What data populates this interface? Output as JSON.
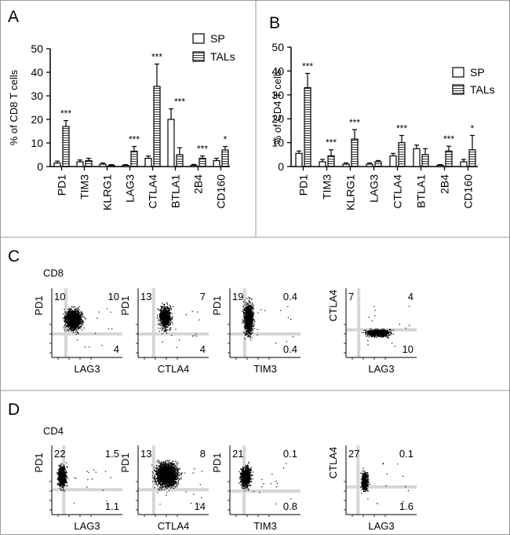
{
  "panel_labels": {
    "a": "A",
    "b": "B",
    "c": "C",
    "d": "D"
  },
  "legend": {
    "sp": "SP",
    "tals": "TALs"
  },
  "chart_data": [
    {
      "type": "bar",
      "panel": "A",
      "ylabel": "% of CD8 T cells",
      "ylim": [
        0,
        50
      ],
      "yticks": [
        0,
        10,
        20,
        30,
        40,
        50
      ],
      "categories": [
        "PD1",
        "TIM3",
        "KLRG1",
        "LAG3",
        "CTLA4",
        "BTLA1",
        "2B4",
        "CD160"
      ],
      "series": [
        {
          "name": "SP",
          "values": [
            1.5,
            2,
            1,
            0.5,
            3.5,
            20,
            0.5,
            2.5
          ],
          "errors": [
            0.8,
            0.8,
            0.5,
            0.3,
            1.0,
            4.5,
            0.4,
            1.0
          ]
        },
        {
          "name": "TALs",
          "values": [
            17,
            2.5,
            0.5,
            6.5,
            34,
            5,
            3.5,
            7
          ],
          "errors": [
            2.5,
            1.0,
            0.3,
            2.0,
            9.5,
            3.0,
            1.0,
            1.5
          ]
        }
      ],
      "significance": [
        "***",
        "",
        "",
        "***",
        "***",
        "***",
        "***",
        "*"
      ]
    },
    {
      "type": "bar",
      "panel": "B",
      "ylabel": "% of CD4 T cells",
      "ylim": [
        0,
        50
      ],
      "yticks": [
        0,
        10,
        20,
        30,
        40,
        50
      ],
      "categories": [
        "PD1",
        "TIM3",
        "KLRG1",
        "LAG3",
        "CTLA4",
        "BTLA1",
        "2B4",
        "CD160"
      ],
      "series": [
        {
          "name": "SP",
          "values": [
            5.5,
            2,
            1,
            1,
            4.5,
            7.5,
            0.5,
            2
          ],
          "errors": [
            1.0,
            1.0,
            0.5,
            0.5,
            1.0,
            1.5,
            0.3,
            1.0
          ]
        },
        {
          "name": "TALs",
          "values": [
            33,
            4.5,
            11.5,
            2,
            10,
            5,
            6.5,
            7
          ],
          "errors": [
            6.0,
            2.5,
            4.0,
            0.5,
            3.0,
            2.5,
            2.0,
            6.0
          ]
        }
      ],
      "significance": [
        "***",
        "***",
        "***",
        "",
        "***",
        "",
        "***",
        "*"
      ]
    }
  ],
  "flow_c": {
    "population": "CD8",
    "plots": [
      {
        "xlabel": "LAG3",
        "ylabel": "PD1",
        "ul": "10",
        "ur": "10",
        "lr": "4"
      },
      {
        "xlabel": "CTLA4",
        "ylabel": "PD1",
        "ul": "13",
        "ur": "7",
        "lr": "4"
      },
      {
        "xlabel": "TIM3",
        "ylabel": "PD1",
        "ul": "19",
        "ur": "0.4",
        "lr": "0.4"
      },
      {
        "xlabel": "LAG3",
        "ylabel": "CTLA4",
        "ul": "7",
        "ur": "4",
        "lr": "10"
      }
    ]
  },
  "flow_d": {
    "population": "CD4",
    "plots": [
      {
        "xlabel": "LAG3",
        "ylabel": "PD1",
        "ul": "22",
        "ur": "1.5",
        "lr": "1.1"
      },
      {
        "xlabel": "CTLA4",
        "ylabel": "PD1",
        "ul": "13",
        "ur": "8",
        "lr": "14"
      },
      {
        "xlabel": "TIM3",
        "ylabel": "PD1",
        "ul": "21",
        "ur": "0.1",
        "lr": "0.8"
      },
      {
        "xlabel": "LAG3",
        "ylabel": "CTLA4",
        "ul": "27",
        "ur": "0.1",
        "lr": "1.6"
      }
    ]
  }
}
